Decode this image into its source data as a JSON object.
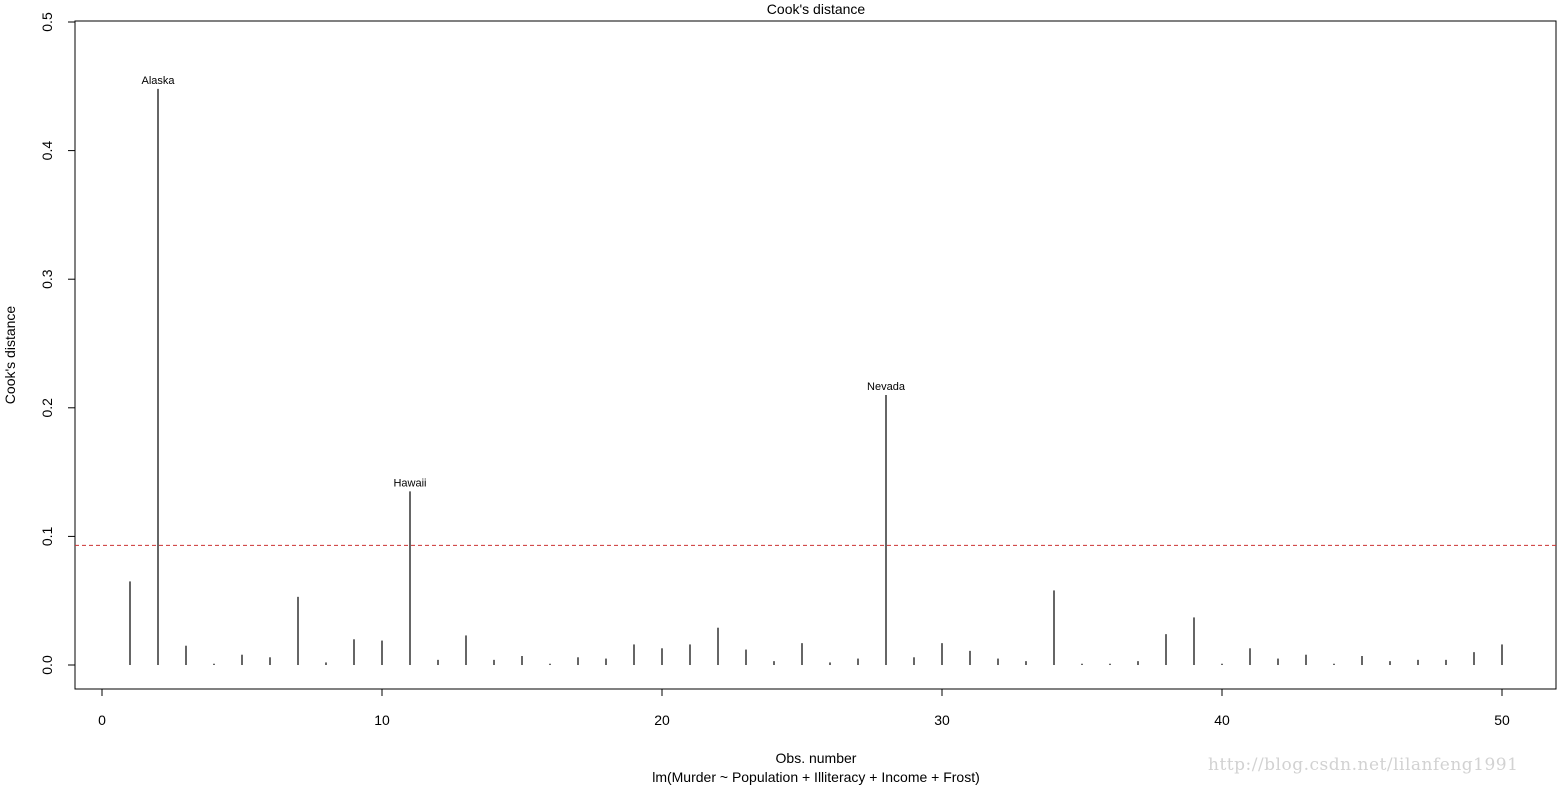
{
  "chart_data": {
    "type": "bar",
    "title": "Cook's distance",
    "xlabel": "Obs. number",
    "subtitle": "lm(Murder ~ Population + Illiteracy + Income + Frost)",
    "ylabel": "Cook's distance",
    "xlim": [
      0,
      50
    ],
    "ylim": [
      0,
      0.5
    ],
    "xticks": [
      0,
      10,
      20,
      30,
      40,
      50
    ],
    "yticks": [
      0.0,
      0.1,
      0.2,
      0.3,
      0.4,
      0.5
    ],
    "ytick_labels": [
      "0.0",
      "0.1",
      "0.2",
      "0.3",
      "0.4",
      "0.5"
    ],
    "grid": false,
    "x": [
      1,
      2,
      3,
      4,
      5,
      6,
      7,
      8,
      9,
      10,
      11,
      12,
      13,
      14,
      15,
      16,
      17,
      18,
      19,
      20,
      21,
      22,
      23,
      24,
      25,
      26,
      27,
      28,
      29,
      30,
      31,
      32,
      33,
      34,
      35,
      36,
      37,
      38,
      39,
      40,
      41,
      42,
      43,
      44,
      45,
      46,
      47,
      48,
      49,
      50
    ],
    "values": [
      0.065,
      0.448,
      0.015,
      0.001,
      0.008,
      0.006,
      0.053,
      0.002,
      0.02,
      0.019,
      0.135,
      0.004,
      0.023,
      0.004,
      0.007,
      0.001,
      0.006,
      0.005,
      0.016,
      0.013,
      0.016,
      0.029,
      0.012,
      0.003,
      0.017,
      0.002,
      0.005,
      0.21,
      0.006,
      0.017,
      0.011,
      0.005,
      0.003,
      0.058,
      0.001,
      0.001,
      0.003,
      0.024,
      0.037,
      0.001,
      0.013,
      0.005,
      0.008,
      0.001,
      0.007,
      0.003,
      0.004,
      0.004,
      0.01,
      0.016
    ],
    "labeled_points": [
      {
        "x": 2,
        "label": "Alaska"
      },
      {
        "x": 11,
        "label": "Hawaii"
      },
      {
        "x": 28,
        "label": "Nevada"
      }
    ],
    "reference_line": {
      "y": 0.093,
      "style": "dashed",
      "color": "#cc3333"
    },
    "bar_color": "#000000"
  },
  "watermark": "http://blog.csdn.net/lilanfeng1991"
}
